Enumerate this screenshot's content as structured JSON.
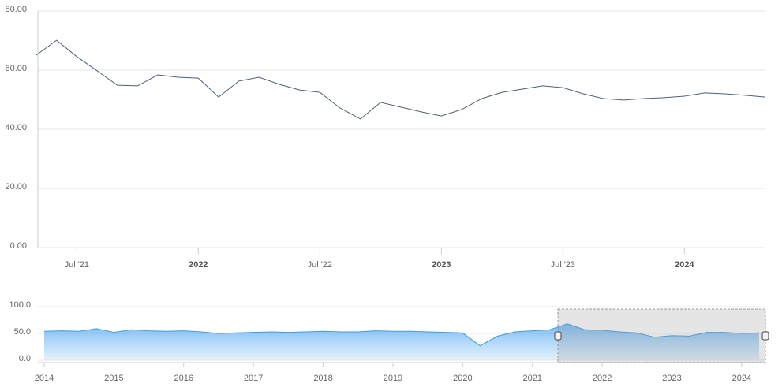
{
  "chart_data": [
    {
      "type": "line",
      "color": "#4a6080",
      "grid": true,
      "categories": [
        null,
        null,
        "Jul '21",
        null,
        null,
        null,
        null,
        null,
        "2022",
        null,
        null,
        null,
        null,
        null,
        "Jul '22",
        null,
        null,
        null,
        null,
        null,
        "2023",
        null,
        null,
        null,
        null,
        null,
        "Jul '23",
        null,
        null,
        null,
        null,
        null,
        "2024",
        null,
        null,
        null,
        null
      ],
      "values": [
        65.1,
        70.1,
        64.6,
        59.8,
        54.9,
        54.7,
        58.4,
        57.6,
        57.3,
        50.9,
        56.3,
        57.6,
        55.2,
        53.3,
        52.5,
        47.2,
        43.5,
        49.1,
        47.5,
        45.9,
        44.5,
        46.7,
        50.4,
        52.5,
        53.6,
        54.7,
        54.1,
        52.0,
        50.4,
        49.9,
        50.4,
        50.7,
        51.2,
        52.3,
        52.0,
        51.5,
        50.9
      ],
      "ylim": [
        0,
        80
      ],
      "yticks": [
        {
          "value": 0,
          "label": "0.00"
        },
        {
          "value": 20,
          "label": "20.00"
        },
        {
          "value": 40,
          "label": "40.00"
        },
        {
          "value": 60,
          "label": "60.00"
        },
        {
          "value": 80,
          "label": "80.00"
        }
      ]
    },
    {
      "type": "area",
      "color": "#3d9be9",
      "grid": true,
      "categories": [
        "2014",
        null,
        null,
        null,
        "2015",
        null,
        null,
        null,
        "2016",
        null,
        null,
        null,
        "2017",
        null,
        null,
        null,
        "2018",
        null,
        null,
        null,
        "2019",
        null,
        null,
        null,
        "2020",
        null,
        null,
        null,
        "2021",
        null,
        null,
        null,
        "2022",
        null,
        null,
        null,
        "2023",
        null,
        null,
        null,
        "2024",
        null
      ],
      "values": [
        54,
        55,
        54,
        59,
        52,
        57,
        55,
        54,
        55,
        53,
        50,
        51,
        52,
        53,
        52,
        53,
        54,
        53,
        53,
        55,
        54,
        54,
        53,
        52,
        51,
        27,
        45,
        53,
        55,
        57,
        68,
        57,
        56,
        53,
        51,
        43,
        46,
        45,
        52,
        52,
        50,
        51
      ],
      "ylim": [
        0,
        100
      ],
      "yticks": [
        {
          "value": 0,
          "label": "0.0"
        },
        {
          "value": 50,
          "label": "50.0"
        },
        {
          "value": 100,
          "label": "100.0"
        }
      ]
    }
  ]
}
